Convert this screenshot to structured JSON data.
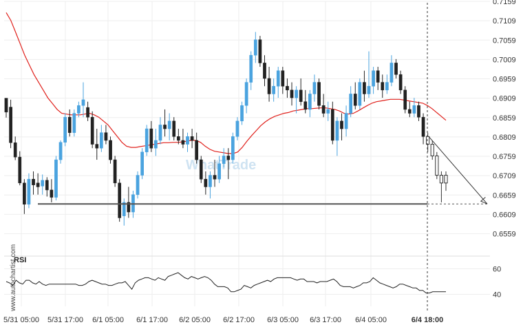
{
  "chart_data": {
    "type": "candlestick",
    "y_axis": {
      "ticks": [
        "0.7159",
        "0.7109",
        "0.7059",
        "0.7009",
        "0.6959",
        "0.6909",
        "0.6859",
        "0.6809",
        "0.6759",
        "0.6709",
        "0.6659",
        "0.6609",
        "0.6559"
      ],
      "range": [
        0.6519,
        0.7159
      ],
      "position": "right"
    },
    "x_axis": {
      "ticks": [
        "5/31 05:00",
        "5/31 17:00",
        "6/1 05:00",
        "6/1 17:00",
        "6/2 05:00",
        "6/2 17:00",
        "6/3 05:00",
        "6/3 17:00",
        "6/4 05:00",
        "6/4 18:00"
      ],
      "highlighted": "6/4 18:00"
    },
    "candles": [
      [
        0.6909,
        0.6909,
        0.6859,
        0.6873
      ],
      [
        0.6886,
        0.6905,
        0.678,
        0.6794
      ],
      [
        0.6794,
        0.681,
        0.6749,
        0.6757
      ],
      [
        0.6757,
        0.6772,
        0.6684,
        0.669
      ],
      [
        0.669,
        0.67,
        0.661,
        0.6635
      ],
      [
        0.6635,
        0.6715,
        0.6625,
        0.67
      ],
      [
        0.67,
        0.672,
        0.666,
        0.6685
      ],
      [
        0.669,
        0.6715,
        0.666,
        0.668
      ],
      [
        0.6682,
        0.6712,
        0.666,
        0.6697
      ],
      [
        0.6697,
        0.6705,
        0.6655,
        0.6672
      ],
      [
        0.6672,
        0.67,
        0.664,
        0.6653
      ],
      [
        0.6653,
        0.676,
        0.6645,
        0.675
      ],
      [
        0.675,
        0.68,
        0.674,
        0.6795
      ],
      [
        0.6795,
        0.687,
        0.6785,
        0.686
      ],
      [
        0.686,
        0.688,
        0.681,
        0.682
      ],
      [
        0.682,
        0.688,
        0.681,
        0.687
      ],
      [
        0.687,
        0.69,
        0.686,
        0.689
      ],
      [
        0.689,
        0.695,
        0.686,
        0.6905
      ],
      [
        0.6885,
        0.69,
        0.685,
        0.686
      ],
      [
        0.686,
        0.6875,
        0.678,
        0.679
      ],
      [
        0.679,
        0.683,
        0.675,
        0.678
      ],
      [
        0.678,
        0.684,
        0.677,
        0.682
      ],
      [
        0.682,
        0.684,
        0.679,
        0.68
      ],
      [
        0.68,
        0.681,
        0.674,
        0.675
      ],
      [
        0.675,
        0.676,
        0.668,
        0.669
      ],
      [
        0.669,
        0.67,
        0.659,
        0.66
      ],
      [
        0.6605,
        0.665,
        0.658,
        0.664
      ],
      [
        0.664,
        0.668,
        0.66,
        0.6615
      ],
      [
        0.6615,
        0.667,
        0.66,
        0.666
      ],
      [
        0.666,
        0.672,
        0.665,
        0.671
      ],
      [
        0.671,
        0.678,
        0.67,
        0.677
      ],
      [
        0.677,
        0.684,
        0.676,
        0.683
      ],
      [
        0.683,
        0.685,
        0.677,
        0.678
      ],
      [
        0.678,
        0.683,
        0.676,
        0.68
      ],
      [
        0.68,
        0.686,
        0.679,
        0.684
      ],
      [
        0.684,
        0.688,
        0.681,
        0.683
      ],
      [
        0.683,
        0.687,
        0.68,
        0.685
      ],
      [
        0.685,
        0.686,
        0.68,
        0.681
      ],
      [
        0.681,
        0.683,
        0.679,
        0.68
      ],
      [
        0.68,
        0.683,
        0.678,
        0.679
      ],
      [
        0.679,
        0.682,
        0.677,
        0.681
      ],
      [
        0.681,
        0.683,
        0.678,
        0.68
      ],
      [
        0.68,
        0.682,
        0.674,
        0.675
      ],
      [
        0.675,
        0.676,
        0.669,
        0.67
      ],
      [
        0.67,
        0.672,
        0.666,
        0.668
      ],
      [
        0.668,
        0.672,
        0.665,
        0.671
      ],
      [
        0.671,
        0.675,
        0.668,
        0.67
      ],
      [
        0.67,
        0.676,
        0.669,
        0.674
      ],
      [
        0.674,
        0.678,
        0.673,
        0.676
      ],
      [
        0.676,
        0.678,
        0.67,
        0.675
      ],
      [
        0.675,
        0.682,
        0.674,
        0.681
      ],
      [
        0.681,
        0.686,
        0.68,
        0.685
      ],
      [
        0.685,
        0.69,
        0.684,
        0.689
      ],
      [
        0.689,
        0.696,
        0.687,
        0.695
      ],
      [
        0.695,
        0.703,
        0.693,
        0.702
      ],
      [
        0.702,
        0.708,
        0.7,
        0.706
      ],
      [
        0.706,
        0.707,
        0.699,
        0.7
      ],
      [
        0.7,
        0.702,
        0.694,
        0.696
      ],
      [
        0.696,
        0.699,
        0.69,
        0.692
      ],
      [
        0.692,
        0.696,
        0.69,
        0.694
      ],
      [
        0.694,
        0.699,
        0.691,
        0.698
      ],
      [
        0.698,
        0.699,
        0.692,
        0.694
      ],
      [
        0.694,
        0.696,
        0.691,
        0.693
      ],
      [
        0.693,
        0.695,
        0.689,
        0.691
      ],
      [
        0.691,
        0.694,
        0.687,
        0.693
      ],
      [
        0.693,
        0.696,
        0.689,
        0.69
      ],
      [
        0.69,
        0.693,
        0.687,
        0.688
      ],
      [
        0.688,
        0.693,
        0.686,
        0.692
      ],
      [
        0.692,
        0.697,
        0.69,
        0.695
      ],
      [
        0.695,
        0.696,
        0.688,
        0.689
      ],
      [
        0.689,
        0.692,
        0.686,
        0.687
      ],
      [
        0.687,
        0.69,
        0.685,
        0.688
      ],
      [
        0.688,
        0.69,
        0.679,
        0.68
      ],
      [
        0.68,
        0.686,
        0.676,
        0.685
      ],
      [
        0.685,
        0.687,
        0.68,
        0.683
      ],
      [
        0.683,
        0.689,
        0.681,
        0.687
      ],
      [
        0.687,
        0.694,
        0.686,
        0.692
      ],
      [
        0.692,
        0.695,
        0.688,
        0.689
      ],
      [
        0.689,
        0.696,
        0.688,
        0.695
      ],
      [
        0.695,
        0.698,
        0.69,
        0.692
      ],
      [
        0.692,
        0.703,
        0.691,
        0.694
      ],
      [
        0.694,
        0.699,
        0.692,
        0.698
      ],
      [
        0.698,
        0.699,
        0.693,
        0.695
      ],
      [
        0.695,
        0.697,
        0.691,
        0.693
      ],
      [
        0.693,
        0.697,
        0.692,
        0.695
      ],
      [
        0.695,
        0.702,
        0.694,
        0.7
      ],
      [
        0.7,
        0.701,
        0.696,
        0.697
      ],
      [
        0.697,
        0.698,
        0.692,
        0.693
      ],
      [
        0.693,
        0.694,
        0.687,
        0.688
      ],
      [
        0.688,
        0.69,
        0.686,
        0.687
      ],
      [
        0.687,
        0.691,
        0.686,
        0.689
      ],
      [
        0.689,
        0.69,
        0.685,
        0.686
      ],
      [
        0.686,
        0.687,
        0.679,
        0.681
      ],
      [
        0.681,
        0.682,
        0.677,
        0.679
      ],
      [
        0.679,
        0.68,
        0.675,
        0.676
      ],
      [
        0.676,
        0.677,
        0.67,
        0.671
      ],
      [
        0.671,
        0.672,
        0.664,
        0.669
      ],
      [
        0.669,
        0.672,
        0.667,
        0.671
      ]
    ],
    "moving_average": [
      0.713,
      0.711,
      0.708,
      0.705,
      0.702,
      0.6995,
      0.697,
      0.695,
      0.693,
      0.691,
      0.6895,
      0.688,
      0.687,
      0.6868,
      0.6866,
      0.6866,
      0.6866,
      0.6868,
      0.687,
      0.6866,
      0.686,
      0.685,
      0.684,
      0.6825,
      0.681,
      0.6795,
      0.6785,
      0.6782,
      0.6782,
      0.6784,
      0.6786,
      0.6788,
      0.679,
      0.6792,
      0.6794,
      0.6794,
      0.6795,
      0.6795,
      0.6796,
      0.6798,
      0.68,
      0.68,
      0.6795,
      0.6785,
      0.6777,
      0.6772,
      0.677,
      0.6768,
      0.6766,
      0.6766,
      0.677,
      0.6782,
      0.6798,
      0.6812,
      0.6825,
      0.6838,
      0.6848,
      0.6856,
      0.6862,
      0.6866,
      0.687,
      0.6872,
      0.6876,
      0.6878,
      0.688,
      0.6882,
      0.6882,
      0.6883,
      0.6884,
      0.6884,
      0.6882,
      0.688,
      0.6876,
      0.687,
      0.6868,
      0.687,
      0.6876,
      0.6883,
      0.689,
      0.6896,
      0.69,
      0.6902,
      0.6904,
      0.6906,
      0.6906,
      0.6906,
      0.6904,
      0.6902,
      0.69,
      0.6898,
      0.6896,
      0.689,
      0.6882,
      0.6872,
      0.6862,
      0.6852
    ],
    "support_level": 0.6636,
    "projection": {
      "from": 0.681,
      "to": 0.6636
    },
    "rsi": {
      "label": "RSI",
      "ticks": [
        "60",
        "40"
      ],
      "range": [
        30,
        70
      ],
      "values": [
        50,
        49,
        47,
        51,
        49,
        48,
        51,
        51,
        49,
        48,
        50,
        48,
        47,
        48,
        48,
        48,
        48,
        48,
        48,
        48,
        48,
        48,
        47,
        47,
        48,
        50,
        51,
        50,
        49,
        48,
        48,
        47,
        47,
        48,
        49,
        49,
        50,
        47,
        44,
        49,
        51,
        52,
        53,
        53,
        52,
        51,
        53,
        52,
        51,
        54,
        55,
        56,
        57,
        55,
        53,
        52,
        54,
        53,
        52,
        53,
        54,
        53,
        51,
        48,
        46,
        46,
        46,
        45,
        42,
        42,
        43,
        44,
        47,
        46,
        45,
        47,
        48,
        49,
        50,
        51,
        50,
        52,
        53,
        53,
        53,
        53,
        53,
        52,
        51,
        52,
        52,
        50,
        50,
        50,
        49,
        50,
        50,
        50,
        51,
        52,
        50,
        47,
        46,
        46,
        46,
        45,
        46,
        47,
        49,
        49,
        50,
        53,
        51,
        49,
        48,
        47,
        46,
        45,
        46,
        48,
        48,
        47,
        46,
        45,
        45,
        43,
        43,
        41,
        41,
        42,
        42,
        42,
        42,
        42
      ]
    }
  },
  "watermarks": {
    "side": "www.autochartist.com",
    "center": "WhatTrade"
  },
  "colors": {
    "bullish": "#4aa3df",
    "bearish": "#222222",
    "moving_average": "#e0201b",
    "support": "#555555"
  }
}
